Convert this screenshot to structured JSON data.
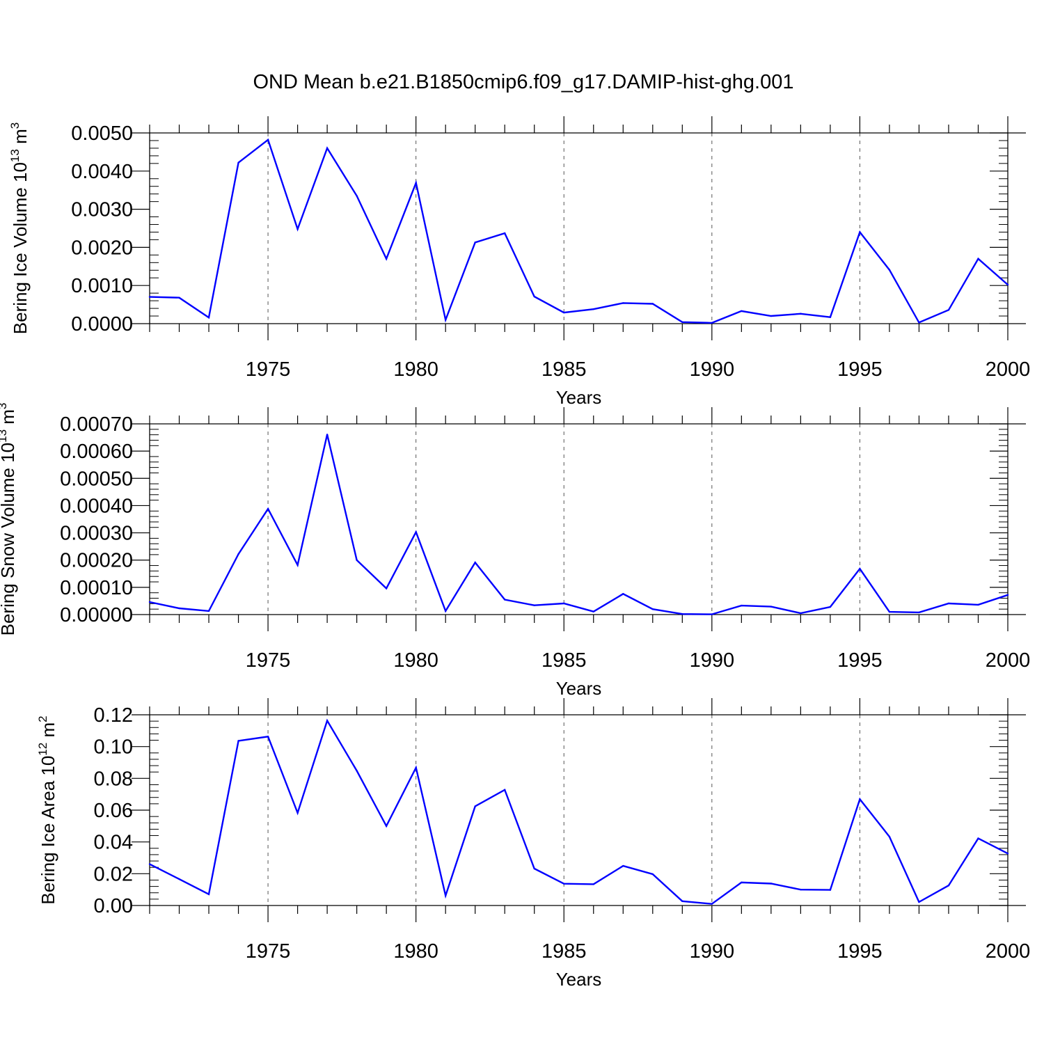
{
  "figure": {
    "title": "OND Mean b.e21.B1850cmip6.f09_g17.DAMIP-hist-ghg.001",
    "line_color": "#0000ff"
  },
  "chart_data": [
    {
      "type": "line",
      "title": "",
      "ylabel": "Bering Ice Volume 10",
      "ylabel_exp": "13",
      "ylabel_unit": "m",
      "ylabel_unit_exp": "3",
      "xlabel": "Years",
      "xlim": [
        1971,
        2000
      ],
      "ylim": [
        0,
        0.005
      ],
      "xticks": [
        1975,
        1980,
        1985,
        1990,
        1995,
        2000
      ],
      "xtick_labels": [
        "1975",
        "1980",
        "1985",
        "1990",
        "1995",
        "2000"
      ],
      "yticks": [
        0,
        0.001,
        0.002,
        0.003,
        0.004,
        0.005
      ],
      "ytick_labels": [
        "0.0000",
        "0.0010",
        "0.0020",
        "0.0030",
        "0.0040",
        "0.0050"
      ],
      "grid": "vertical dashed at major x ticks",
      "x": [
        1971,
        1972,
        1973,
        1974,
        1975,
        1976,
        1977,
        1978,
        1979,
        1980,
        1981,
        1982,
        1983,
        1984,
        1985,
        1986,
        1987,
        1988,
        1989,
        1990,
        1991,
        1992,
        1993,
        1994,
        1995,
        1996,
        1997,
        1998,
        1999,
        2000
      ],
      "series": [
        {
          "name": "Bering Ice Volume",
          "values": [
            0.0007,
            0.00068,
            0.00016,
            0.00422,
            0.00482,
            0.00248,
            0.0046,
            0.00335,
            0.0017,
            0.00369,
            0.0001,
            0.00213,
            0.00237,
            0.00071,
            0.00029,
            0.00038,
            0.00054,
            0.00052,
            4e-05,
            2e-05,
            0.00033,
            0.0002,
            0.00026,
            0.00017,
            0.0024,
            0.00141,
            3e-05,
            0.00036,
            0.0017,
            0.00102
          ]
        }
      ]
    },
    {
      "type": "line",
      "title": "",
      "ylabel": "Bering Snow Volume 10",
      "ylabel_exp": "13",
      "ylabel_unit": "m",
      "ylabel_unit_exp": "3",
      "xlabel": "Years",
      "xlim": [
        1971,
        2000
      ],
      "ylim": [
        0,
        0.0007
      ],
      "xticks": [
        1975,
        1980,
        1985,
        1990,
        1995,
        2000
      ],
      "xtick_labels": [
        "1975",
        "1980",
        "1985",
        "1990",
        "1995",
        "2000"
      ],
      "yticks": [
        0,
        0.0001,
        0.0002,
        0.0003,
        0.0004,
        0.0005,
        0.0006,
        0.0007
      ],
      "ytick_labels": [
        "0.00000",
        "0.00010",
        "0.00020",
        "0.00030",
        "0.00040",
        "0.00050",
        "0.00060",
        "0.00070"
      ],
      "grid": "vertical dashed at major x ticks",
      "x": [
        1971,
        1972,
        1973,
        1974,
        1975,
        1976,
        1977,
        1978,
        1979,
        1980,
        1981,
        1982,
        1983,
        1984,
        1985,
        1986,
        1987,
        1988,
        1989,
        1990,
        1991,
        1992,
        1993,
        1994,
        1995,
        1996,
        1997,
        1998,
        1999,
        2000
      ],
      "series": [
        {
          "name": "Bering Snow Volume",
          "values": [
            4.6e-05,
            2.3e-05,
            1.3e-05,
            0.000222,
            0.000388,
            0.000182,
            0.000661,
            0.0002,
            9.6e-05,
            0.000303,
            1.3e-05,
            0.000191,
            5.5e-05,
            3.4e-05,
            4.1e-05,
            1.1e-05,
            7.6e-05,
            2e-05,
            2e-06,
            1e-06,
            3.3e-05,
            2.9e-05,
            5e-06,
            2.8e-05,
            0.000168,
            1e-05,
            8e-06,
            4.1e-05,
            3.6e-05,
            7.2e-05
          ]
        }
      ]
    },
    {
      "type": "line",
      "title": "",
      "ylabel": "Bering Ice Area 10",
      "ylabel_exp": "12",
      "ylabel_unit": "m",
      "ylabel_unit_exp": "2",
      "xlabel": "Years",
      "xlim": [
        1971,
        2000
      ],
      "ylim": [
        0,
        0.12
      ],
      "xticks": [
        1975,
        1980,
        1985,
        1990,
        1995,
        2000
      ],
      "xtick_labels": [
        "1975",
        "1980",
        "1985",
        "1990",
        "1995",
        "2000"
      ],
      "yticks": [
        0,
        0.02,
        0.04,
        0.06,
        0.08,
        0.1,
        0.12
      ],
      "ytick_labels": [
        "0.00",
        "0.02",
        "0.04",
        "0.06",
        "0.08",
        "0.10",
        "0.12"
      ],
      "grid": "vertical dashed at major x ticks",
      "x": [
        1971,
        1972,
        1973,
        1974,
        1975,
        1976,
        1977,
        1978,
        1979,
        1980,
        1981,
        1982,
        1983,
        1984,
        1985,
        1986,
        1987,
        1988,
        1989,
        1990,
        1991,
        1992,
        1993,
        1994,
        1995,
        1996,
        1997,
        1998,
        1999,
        2000
      ],
      "series": [
        {
          "name": "Bering Ice Area",
          "values": [
            0.026,
            0.0166,
            0.0071,
            0.1036,
            0.1063,
            0.0583,
            0.1163,
            0.0848,
            0.05,
            0.0867,
            0.0062,
            0.0624,
            0.0728,
            0.0232,
            0.0137,
            0.0134,
            0.0249,
            0.0197,
            0.0027,
            0.001,
            0.0145,
            0.0138,
            0.01,
            0.0098,
            0.0669,
            0.0433,
            0.0022,
            0.0126,
            0.0422,
            0.0327
          ]
        }
      ]
    }
  ]
}
